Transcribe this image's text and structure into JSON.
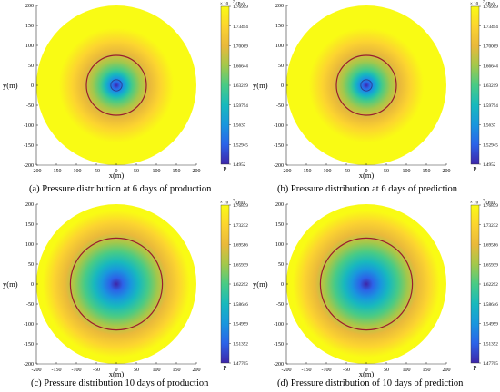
{
  "chart_data": [
    {
      "type": "heatmap",
      "title": "(a) Pressure distribution at 6 days of production",
      "xlabel": "x(m)",
      "ylabel": "y(m)",
      "xlim": [
        -200,
        200
      ],
      "ylim": [
        -200,
        200
      ],
      "x_ticks": [
        "-200",
        "-150",
        "-100",
        "-50",
        "0",
        "50",
        "100",
        "150",
        "200"
      ],
      "y_ticks": [
        "200",
        "150",
        "100",
        "50",
        "0",
        "-50",
        "-100",
        "-150",
        "-200"
      ],
      "domain_radius": 200,
      "front_radius": 75,
      "well_radius": 14,
      "colorbar_label": "P",
      "colorbar_unit": "(Pa)",
      "colorbar_exponent": "× 10",
      "colorbar_exponent_power": "7",
      "colorbar_ticks": [
        "1.76919",
        "1.73494",
        "1.70069",
        "1.66644",
        "1.63219",
        "1.59794",
        "1.5637",
        "1.52945",
        "1.4952"
      ],
      "value_range": [
        1.4952,
        1.76919
      ],
      "grid": false
    },
    {
      "type": "heatmap",
      "title": "(b) Pressure distribution at 6 days of prediction",
      "xlabel": "x(m)",
      "ylabel": "y(m)",
      "xlim": [
        -200,
        200
      ],
      "ylim": [
        -200,
        200
      ],
      "x_ticks": [
        "-200",
        "-150",
        "-100",
        "-50",
        "0",
        "50",
        "100",
        "150",
        "200"
      ],
      "y_ticks": [
        "200",
        "150",
        "100",
        "50",
        "0",
        "-50",
        "-100",
        "-150",
        "-200"
      ],
      "domain_radius": 200,
      "front_radius": 75,
      "well_radius": 14,
      "colorbar_label": "P",
      "colorbar_unit": "(Pa)",
      "colorbar_exponent": "× 10",
      "colorbar_exponent_power": "7",
      "colorbar_ticks": [
        "1.76919",
        "1.73494",
        "1.70069",
        "1.66644",
        "1.63219",
        "1.59794",
        "1.5637",
        "1.52945",
        "1.4952"
      ],
      "value_range": [
        1.4952,
        1.76919
      ],
      "grid": false
    },
    {
      "type": "heatmap",
      "title": "(c) Pressure distribution 10 days of production",
      "xlabel": "x(m)",
      "ylabel": "y(m)",
      "xlim": [
        -200,
        200
      ],
      "ylim": [
        -200,
        200
      ],
      "x_ticks": [
        "-200",
        "-150",
        "-100",
        "-50",
        "0",
        "50",
        "100",
        "150",
        "200"
      ],
      "y_ticks": [
        "200",
        "150",
        "100",
        "50",
        "0",
        "-50",
        "-100",
        "-150",
        "-200"
      ],
      "domain_radius": 200,
      "front_radius": 115,
      "well_radius": 0,
      "colorbar_label": "P",
      "colorbar_unit": "(Pa)",
      "colorbar_exponent": "× 10",
      "colorbar_exponent_power": "7",
      "colorbar_ticks": [
        "1.76879",
        "1.73232",
        "1.69586",
        "1.65939",
        "1.62292",
        "1.58646",
        "1.54999",
        "1.51352",
        "1.47705"
      ],
      "value_range": [
        1.47705,
        1.76879
      ],
      "grid": false
    },
    {
      "type": "heatmap",
      "title": "(d) Pressure distribution of 10 days of prediction",
      "xlabel": "x(m)",
      "ylabel": "y(m)",
      "xlim": [
        -200,
        200
      ],
      "ylim": [
        -200,
        200
      ],
      "x_ticks": [
        "-200",
        "-150",
        "-100",
        "-50",
        "0",
        "50",
        "100",
        "150",
        "200"
      ],
      "y_ticks": [
        "200",
        "150",
        "100",
        "50",
        "0",
        "-50",
        "-100",
        "-150",
        "-200"
      ],
      "domain_radius": 200,
      "front_radius": 115,
      "well_radius": 0,
      "colorbar_label": "P",
      "colorbar_unit": "(Pa)",
      "colorbar_exponent": "× 10",
      "colorbar_exponent_power": "7",
      "colorbar_ticks": [
        "1.76879",
        "1.73232",
        "1.69586",
        "1.65939",
        "1.62292",
        "1.58646",
        "1.54999",
        "1.51352",
        "1.47705"
      ],
      "value_range": [
        1.47705,
        1.76879
      ],
      "grid": false
    }
  ],
  "colors": {
    "colormap": [
      "#3e26a8",
      "#2c63e8",
      "#1996de",
      "#18b9bd",
      "#48cb86",
      "#a3c84b",
      "#e9b93b",
      "#fcd430",
      "#f9fb14"
    ],
    "front_line": "#9b1c2e",
    "well_line": "#2a3b8f",
    "axis": "#333333"
  }
}
